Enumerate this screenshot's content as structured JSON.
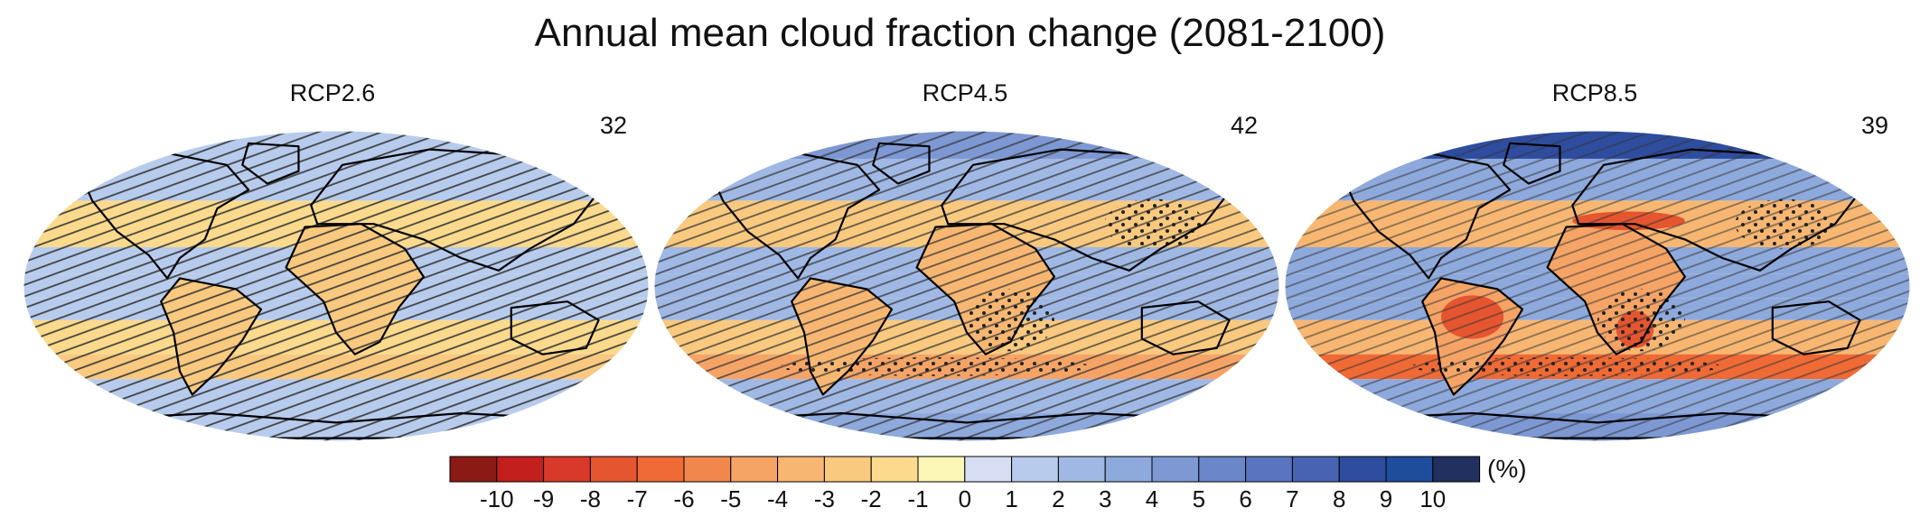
{
  "title": "Annual mean cloud fraction change (2081-2100)",
  "panels": [
    {
      "label": "RCP2.6",
      "count": "32",
      "scheme": "mild"
    },
    {
      "label": "RCP4.5",
      "count": "42",
      "scheme": "medium"
    },
    {
      "label": "RCP8.5",
      "count": "39",
      "scheme": "strong"
    }
  ],
  "colorbar": {
    "unit": "(%)",
    "ticks": [
      "-10",
      "-9",
      "-8",
      "-7",
      "-6",
      "-5",
      "-4",
      "-3",
      "-2",
      "-1",
      "0",
      "1",
      "2",
      "3",
      "4",
      "5",
      "6",
      "7",
      "8",
      "9",
      "10"
    ],
    "colors": [
      "#8b1a14",
      "#c21f1d",
      "#d9392a",
      "#e5552f",
      "#ef6a35",
      "#f2874d",
      "#f5a466",
      "#f7b772",
      "#f9c97f",
      "#fbda8d",
      "#fbf5b6",
      "#d7def3",
      "#b7cbec",
      "#a0b8e4",
      "#8ea9dc",
      "#7d98d3",
      "#6b86c9",
      "#5a74bf",
      "#4763b2",
      "#2e4d9f",
      "#1e4d9b",
      "#22305f"
    ]
  },
  "legend_colors": {
    "hatching": "#333333",
    "stippling": "#222222",
    "coastline": "#000000"
  }
}
